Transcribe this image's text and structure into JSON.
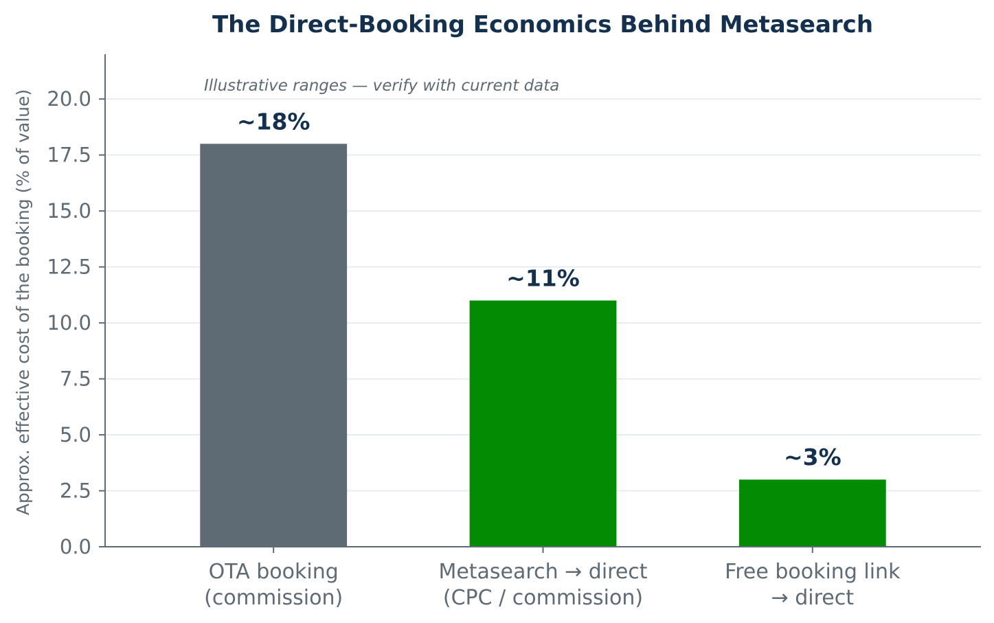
{
  "chart_data": {
    "type": "bar",
    "title": "The Direct-Booking Economics Behind Metasearch",
    "subtitle": "Illustrative ranges — verify with current data",
    "xlabel": "",
    "ylabel": "Approx. effective cost of the booking (% of value)",
    "categories": [
      [
        "OTA booking",
        "(commission)"
      ],
      [
        "Metasearch → direct",
        "(CPC / commission)"
      ],
      [
        "Free booking link",
        "→ direct"
      ]
    ],
    "values": [
      18,
      11,
      3
    ],
    "data_labels": [
      "~18%",
      "~11%",
      "~3%"
    ],
    "colors": [
      "#5e6a74",
      "#038c03",
      "#038c03"
    ],
    "ylim": [
      0,
      22
    ],
    "yticks": [
      0,
      2.5,
      5,
      7.5,
      10,
      12.5,
      15,
      17.5,
      20
    ],
    "ytick_labels": [
      "0.0",
      "2.5",
      "5.0",
      "7.5",
      "10.0",
      "12.5",
      "15.0",
      "17.5",
      "20.0"
    ],
    "grid": "horizontal",
    "legend": "none"
  }
}
